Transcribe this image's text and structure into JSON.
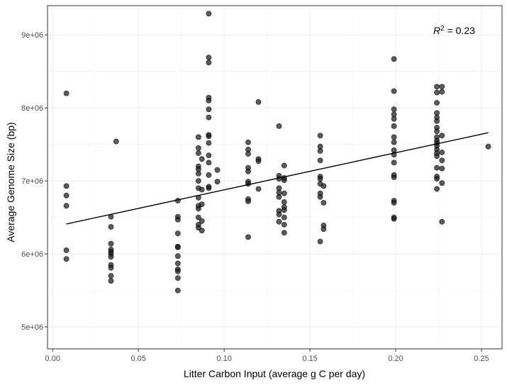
{
  "chart_data": {
    "type": "scatter",
    "title": "",
    "xlabel": "Litter Carbon Input (average g C per day)",
    "ylabel": "Average Genome Size (bp)",
    "xlim": [
      -0.003,
      0.262
    ],
    "ylim": [
      4700000,
      9400000
    ],
    "x_ticks": [
      0.0,
      0.05,
      0.1,
      0.15,
      0.2,
      0.25
    ],
    "x_tick_labels": [
      "0.00",
      "0.05",
      "0.10",
      "0.15",
      "0.20",
      "0.25"
    ],
    "y_ticks": [
      5000000,
      6000000,
      7000000,
      8000000,
      9000000
    ],
    "y_tick_labels": [
      "5e+06",
      "6e+06",
      "7e+06",
      "8e+06",
      "9e+06"
    ],
    "grid": true,
    "annotation": {
      "r_symbol": "R",
      "superscript": "2",
      "value_text": " = 0.23"
    },
    "point_color": "#1a1a1a",
    "regression_line": {
      "x": [
        0.008,
        0.254
      ],
      "y": [
        6410000,
        7660000
      ]
    },
    "points": [
      [
        0.008,
        8200000
      ],
      [
        0.008,
        6930000
      ],
      [
        0.008,
        6800000
      ],
      [
        0.008,
        6660000
      ],
      [
        0.008,
        6050000
      ],
      [
        0.008,
        5930000
      ],
      [
        0.034,
        6510000
      ],
      [
        0.034,
        6370000
      ],
      [
        0.034,
        6140000
      ],
      [
        0.034,
        6060000
      ],
      [
        0.034,
        6030000
      ],
      [
        0.034,
        6000000
      ],
      [
        0.034,
        5960000
      ],
      [
        0.034,
        5850000
      ],
      [
        0.034,
        5810000
      ],
      [
        0.034,
        5700000
      ],
      [
        0.034,
        5630000
      ],
      [
        0.037,
        7540000
      ],
      [
        0.073,
        6730000
      ],
      [
        0.073,
        6510000
      ],
      [
        0.073,
        6470000
      ],
      [
        0.073,
        6280000
      ],
      [
        0.073,
        6100000
      ],
      [
        0.073,
        6090000
      ],
      [
        0.073,
        5970000
      ],
      [
        0.073,
        5870000
      ],
      [
        0.073,
        5790000
      ],
      [
        0.073,
        5760000
      ],
      [
        0.073,
        5670000
      ],
      [
        0.073,
        5500000
      ],
      [
        0.085,
        7600000
      ],
      [
        0.085,
        7450000
      ],
      [
        0.085,
        7380000
      ],
      [
        0.085,
        7200000
      ],
      [
        0.085,
        7160000
      ],
      [
        0.085,
        7100000
      ],
      [
        0.085,
        7000000
      ],
      [
        0.085,
        6900000
      ],
      [
        0.085,
        6770000
      ],
      [
        0.085,
        6660000
      ],
      [
        0.085,
        6620000
      ],
      [
        0.085,
        6500000
      ],
      [
        0.085,
        6400000
      ],
      [
        0.085,
        6360000
      ],
      [
        0.087,
        7300000
      ],
      [
        0.087,
        6880000
      ],
      [
        0.087,
        6680000
      ],
      [
        0.087,
        6450000
      ],
      [
        0.087,
        6320000
      ],
      [
        0.091,
        9290000
      ],
      [
        0.091,
        8690000
      ],
      [
        0.091,
        8620000
      ],
      [
        0.091,
        8140000
      ],
      [
        0.091,
        8100000
      ],
      [
        0.091,
        7980000
      ],
      [
        0.091,
        7870000
      ],
      [
        0.091,
        7630000
      ],
      [
        0.091,
        7610000
      ],
      [
        0.091,
        7520000
      ],
      [
        0.091,
        7350000
      ],
      [
        0.091,
        7250000
      ],
      [
        0.091,
        7080000
      ],
      [
        0.091,
        6920000
      ],
      [
        0.091,
        6900000
      ],
      [
        0.096,
        7150000
      ],
      [
        0.096,
        6990000
      ],
      [
        0.114,
        7530000
      ],
      [
        0.114,
        7430000
      ],
      [
        0.114,
        7370000
      ],
      [
        0.114,
        7180000
      ],
      [
        0.114,
        7130000
      ],
      [
        0.114,
        6990000
      ],
      [
        0.114,
        6960000
      ],
      [
        0.114,
        6750000
      ],
      [
        0.114,
        6720000
      ],
      [
        0.114,
        6230000
      ],
      [
        0.12,
        8080000
      ],
      [
        0.12,
        7300000
      ],
      [
        0.12,
        7270000
      ],
      [
        0.12,
        6890000
      ],
      [
        0.132,
        7750000
      ],
      [
        0.132,
        7070000
      ],
      [
        0.132,
        7030000
      ],
      [
        0.132,
        6900000
      ],
      [
        0.132,
        6840000
      ],
      [
        0.132,
        6780000
      ],
      [
        0.132,
        6590000
      ],
      [
        0.132,
        6540000
      ],
      [
        0.132,
        6440000
      ],
      [
        0.135,
        7210000
      ],
      [
        0.135,
        7040000
      ],
      [
        0.135,
        7010000
      ],
      [
        0.135,
        6830000
      ],
      [
        0.135,
        6710000
      ],
      [
        0.135,
        6640000
      ],
      [
        0.135,
        6600000
      ],
      [
        0.135,
        6500000
      ],
      [
        0.135,
        6400000
      ],
      [
        0.135,
        6290000
      ],
      [
        0.156,
        7620000
      ],
      [
        0.156,
        7470000
      ],
      [
        0.156,
        7410000
      ],
      [
        0.156,
        7280000
      ],
      [
        0.156,
        7060000
      ],
      [
        0.156,
        7030000
      ],
      [
        0.156,
        6960000
      ],
      [
        0.156,
        6830000
      ],
      [
        0.156,
        6780000
      ],
      [
        0.156,
        6170000
      ],
      [
        0.158,
        6930000
      ],
      [
        0.158,
        6700000
      ],
      [
        0.158,
        6390000
      ],
      [
        0.158,
        6340000
      ],
      [
        0.199,
        8670000
      ],
      [
        0.199,
        8230000
      ],
      [
        0.199,
        7980000
      ],
      [
        0.199,
        7910000
      ],
      [
        0.199,
        7850000
      ],
      [
        0.199,
        7750000
      ],
      [
        0.199,
        7600000
      ],
      [
        0.199,
        7530000
      ],
      [
        0.199,
        7420000
      ],
      [
        0.199,
        7360000
      ],
      [
        0.199,
        7250000
      ],
      [
        0.199,
        7080000
      ],
      [
        0.199,
        7050000
      ],
      [
        0.199,
        6730000
      ],
      [
        0.199,
        6700000
      ],
      [
        0.199,
        6500000
      ],
      [
        0.199,
        6480000
      ],
      [
        0.224,
        8290000
      ],
      [
        0.224,
        8210000
      ],
      [
        0.224,
        8070000
      ],
      [
        0.224,
        7930000
      ],
      [
        0.224,
        7870000
      ],
      [
        0.224,
        7820000
      ],
      [
        0.224,
        7730000
      ],
      [
        0.224,
        7680000
      ],
      [
        0.224,
        7600000
      ],
      [
        0.224,
        7550000
      ],
      [
        0.224,
        7520000
      ],
      [
        0.224,
        7480000
      ],
      [
        0.224,
        7430000
      ],
      [
        0.224,
        7380000
      ],
      [
        0.224,
        7340000
      ],
      [
        0.224,
        7180000
      ],
      [
        0.224,
        7060000
      ],
      [
        0.224,
        7030000
      ],
      [
        0.224,
        6890000
      ],
      [
        0.227,
        8290000
      ],
      [
        0.227,
        8220000
      ],
      [
        0.227,
        7620000
      ],
      [
        0.227,
        7390000
      ],
      [
        0.227,
        7280000
      ],
      [
        0.227,
        7170000
      ],
      [
        0.227,
        6970000
      ],
      [
        0.227,
        6440000
      ],
      [
        0.254,
        7470000
      ]
    ]
  }
}
